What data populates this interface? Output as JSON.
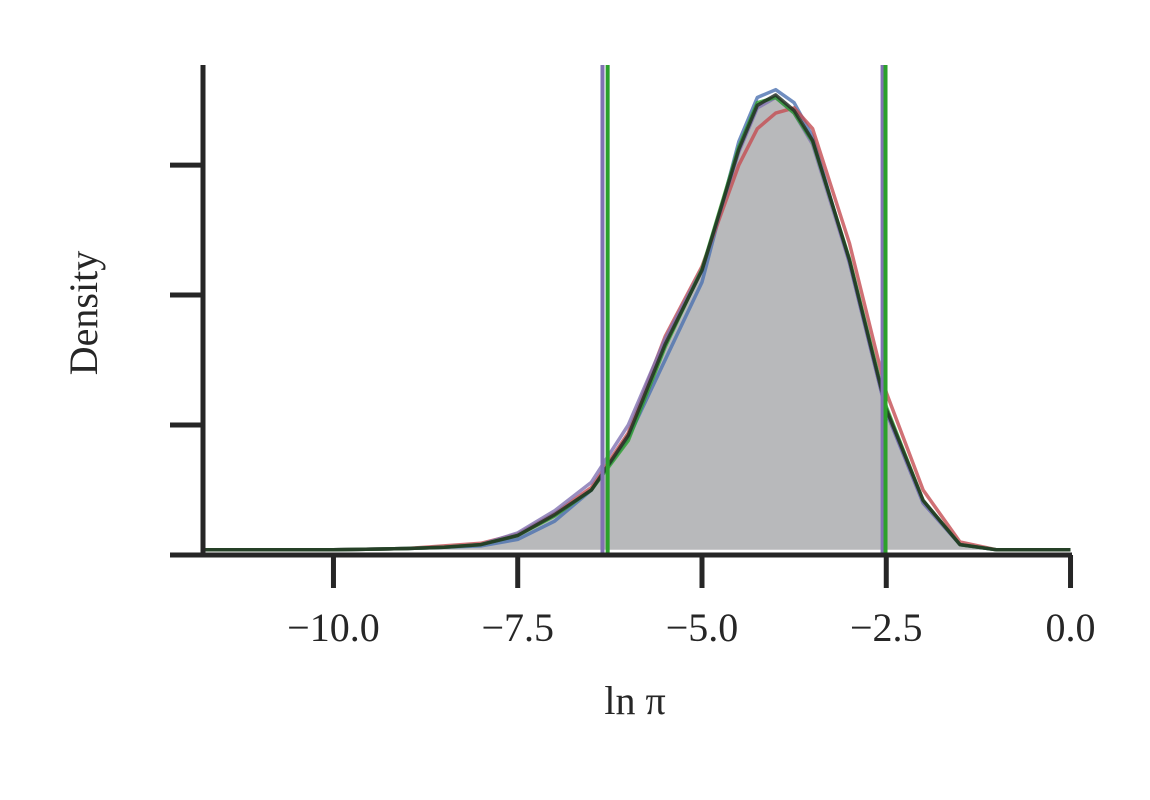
{
  "chart_data": {
    "type": "line",
    "xlabel": "ln π",
    "ylabel": "Density",
    "x": [
      -11.77,
      -10,
      -9,
      -8.5,
      -8,
      -7.5,
      -7,
      -6.5,
      -6,
      -5.5,
      -5,
      -4.5,
      -4.25,
      -4,
      -3.75,
      -3.5,
      -3,
      -2.5,
      -2,
      -1.5,
      -1,
      -0.5,
      0
    ],
    "series": [
      {
        "kind": "area",
        "color": "#b8b9bb",
        "values": [
          0.004,
          0.004,
          0.005,
          0.006,
          0.008,
          0.015,
          0.031,
          0.05,
          0.092,
          0.162,
          0.219,
          0.312,
          0.346,
          0.354,
          0.342,
          0.319,
          0.227,
          0.112,
          0.042,
          0.008,
          0.004,
          0.004,
          0.004
        ]
      },
      {
        "kind": "line",
        "color": "#4c72b0",
        "values": [
          0.004,
          0.004,
          0.005,
          0.006,
          0.007,
          0.012,
          0.026,
          0.05,
          0.09,
          0.15,
          0.21,
          0.318,
          0.352,
          0.358,
          0.348,
          0.322,
          0.225,
          0.11,
          0.04,
          0.008,
          0.004,
          0.004,
          0.004
        ]
      },
      {
        "kind": "line",
        "color": "#c44e52",
        "values": [
          0.004,
          0.004,
          0.005,
          0.007,
          0.009,
          0.016,
          0.032,
          0.052,
          0.094,
          0.168,
          0.222,
          0.3,
          0.328,
          0.34,
          0.344,
          0.328,
          0.24,
          0.125,
          0.05,
          0.01,
          0.004,
          0.004,
          0.004
        ]
      },
      {
        "kind": "line",
        "color": "#8172b2",
        "values": [
          0.004,
          0.004,
          0.005,
          0.006,
          0.008,
          0.017,
          0.034,
          0.056,
          0.1,
          0.166,
          0.22,
          0.31,
          0.344,
          0.352,
          0.34,
          0.316,
          0.225,
          0.11,
          0.04,
          0.008,
          0.004,
          0.004,
          0.004
        ]
      },
      {
        "kind": "line",
        "color": "#2ca02c",
        "values": [
          0.004,
          0.004,
          0.005,
          0.006,
          0.008,
          0.015,
          0.03,
          0.05,
          0.088,
          0.16,
          0.22,
          0.314,
          0.348,
          0.352,
          0.34,
          0.318,
          0.228,
          0.114,
          0.042,
          0.008,
          0.004,
          0.004,
          0.004
        ]
      },
      {
        "kind": "line",
        "color": "#1f2a1f",
        "values": [
          0.004,
          0.004,
          0.005,
          0.006,
          0.008,
          0.015,
          0.031,
          0.05,
          0.092,
          0.162,
          0.219,
          0.312,
          0.346,
          0.354,
          0.342,
          0.319,
          0.227,
          0.112,
          0.042,
          0.008,
          0.004,
          0.004,
          0.004
        ]
      }
    ],
    "vlines": [
      {
        "x": -6.35,
        "color": "#8172b2"
      },
      {
        "x": -6.28,
        "color": "#2ca02c"
      },
      {
        "x": -2.55,
        "color": "#8172b2"
      },
      {
        "x": -2.51,
        "color": "#2ca02c"
      }
    ],
    "xlim": [
      -11.77,
      0.02
    ],
    "ylim": [
      0,
      0.377
    ],
    "xticks": [
      {
        "value": -10,
        "label": "−10.0"
      },
      {
        "value": -7.5,
        "label": "−7.5"
      },
      {
        "value": -5,
        "label": "−5.0"
      },
      {
        "value": -2.5,
        "label": "−2.5"
      },
      {
        "value": 0,
        "label": "0.0"
      }
    ],
    "yticks": [
      0.1,
      0.2,
      0.3
    ]
  }
}
